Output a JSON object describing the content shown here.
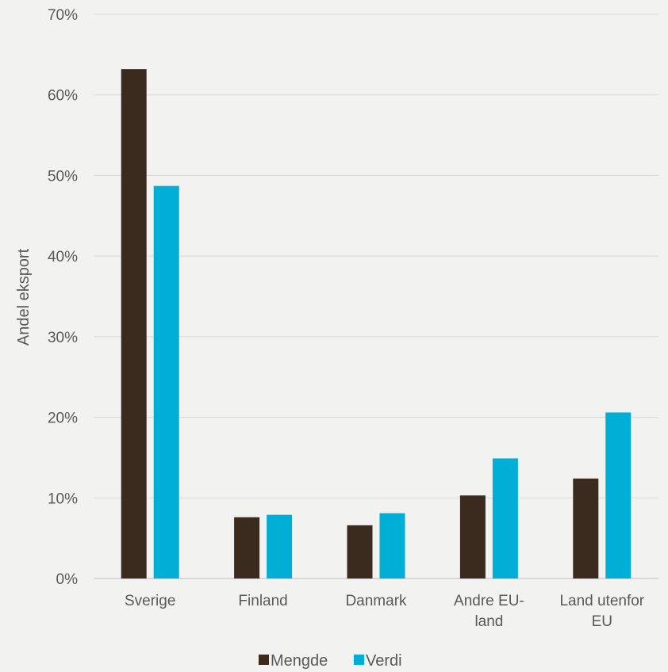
{
  "chart_data": {
    "type": "bar",
    "ylabel": "Andel eksport",
    "xlabel": "",
    "ylim": [
      0,
      70
    ],
    "y_ticks": [
      "0%",
      "10%",
      "20%",
      "30%",
      "40%",
      "50%",
      "60%",
      "70%"
    ],
    "y_tick_values": [
      0,
      10,
      20,
      30,
      40,
      50,
      60,
      70
    ],
    "grid": true,
    "legend_position": "bottom",
    "categories": [
      [
        "Sverige"
      ],
      [
        "Finland"
      ],
      [
        "Danmark"
      ],
      [
        "Andre EU-",
        "land"
      ],
      [
        "Land utenfor",
        "EU"
      ]
    ],
    "series": [
      {
        "name": "Mengde",
        "color": "#3b2a1e",
        "values": [
          63.2,
          7.6,
          6.6,
          10.3,
          12.4
        ]
      },
      {
        "name": "Verdi",
        "color": "#00aed6",
        "values": [
          48.7,
          7.9,
          8.1,
          14.9,
          20.6
        ]
      }
    ]
  }
}
